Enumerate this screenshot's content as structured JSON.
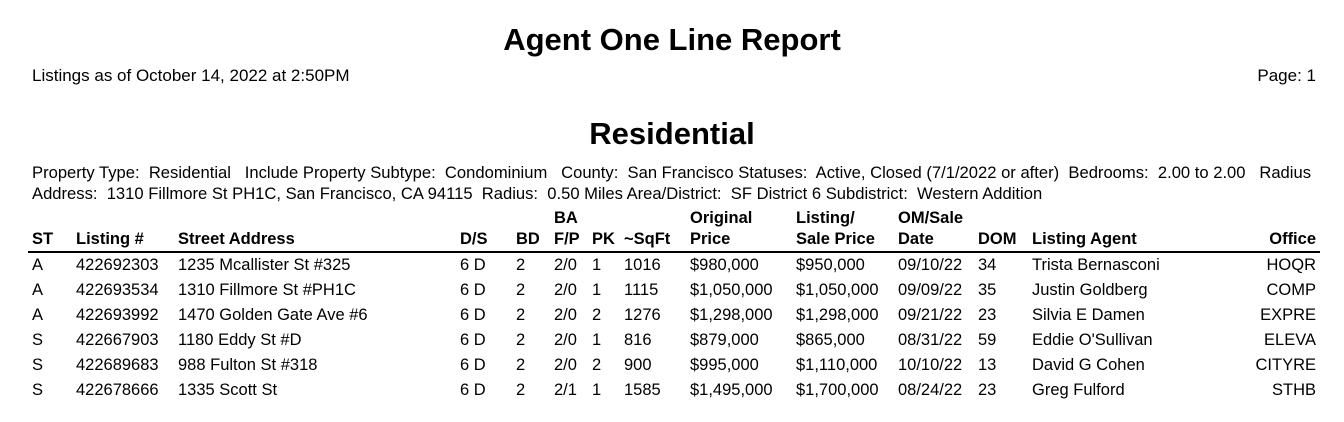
{
  "header": {
    "title": "Agent One Line Report",
    "as_of": "Listings as of October 14, 2022 at 2:50PM",
    "page": "Page: 1"
  },
  "section": {
    "title": "Residential",
    "criteria": "Property Type:  Residential   Include Property Subtype:  Condominium   County:  San Francisco Statuses:  Active, Closed (7/1/2022 or after)  Bedrooms:  2.00 to 2.00   Radius Address:  1310 Fillmore St PH1C, San Francisco, CA 94115  Radius:  0.50 Miles Area/District:  SF District 6 Subdistrict:  Western Addition"
  },
  "table": {
    "columns": {
      "st": "ST",
      "listing": "Listing #",
      "address": "Street Address",
      "ds": "D/S",
      "bd": "BD",
      "ba": "BA\nF/P",
      "pk": "PK",
      "sqft": "~SqFt",
      "orig": "Original\nPrice",
      "sale": "Listing/\nSale Price",
      "date": "OM/Sale\nDate",
      "dom": "DOM",
      "agent": "Listing Agent",
      "office": "Office"
    },
    "rows": [
      {
        "st": "A",
        "listing": "422692303",
        "address": "1235 Mcallister St #325",
        "ds": "6  D",
        "bd": "2",
        "ba": "2/0",
        "pk": "1",
        "sqft": "1016",
        "orig": "$980,000",
        "sale": "$950,000",
        "date": "09/10/22",
        "dom": "34",
        "agent": "Trista Bernasconi",
        "office": "HOQR"
      },
      {
        "st": "A",
        "listing": "422693534",
        "address": "1310 Fillmore St #PH1C",
        "ds": "6  D",
        "bd": "2",
        "ba": "2/0",
        "pk": "1",
        "sqft": "1115",
        "orig": "$1,050,000",
        "sale": "$1,050,000",
        "date": "09/09/22",
        "dom": "35",
        "agent": "Justin Goldberg",
        "office": "COMP"
      },
      {
        "st": "A",
        "listing": "422693992",
        "address": "1470 Golden Gate Ave #6",
        "ds": "6  D",
        "bd": "2",
        "ba": "2/0",
        "pk": "2",
        "sqft": "1276",
        "orig": "$1,298,000",
        "sale": "$1,298,000",
        "date": "09/21/22",
        "dom": "23",
        "agent": "Silvia E Damen",
        "office": "EXPRE"
      },
      {
        "st": "S",
        "listing": "422667903",
        "address": "1180 Eddy St #D",
        "ds": "6  D",
        "bd": "2",
        "ba": "2/0",
        "pk": "1",
        "sqft": "816",
        "orig": "$879,000",
        "sale": "$865,000",
        "date": "08/31/22",
        "dom": "59",
        "agent": "Eddie O'Sullivan",
        "office": "ELEVA"
      },
      {
        "st": "S",
        "listing": "422689683",
        "address": "988 Fulton St #318",
        "ds": "6  D",
        "bd": "2",
        "ba": "2/0",
        "pk": "2",
        "sqft": "900",
        "orig": "$995,000",
        "sale": "$1,110,000",
        "date": "10/10/22",
        "dom": "13",
        "agent": "David G Cohen",
        "office": "CITYRE"
      },
      {
        "st": "S",
        "listing": "422678666",
        "address": "1335 Scott St",
        "ds": "6  D",
        "bd": "2",
        "ba": "2/1",
        "pk": "1",
        "sqft": "1585",
        "orig": "$1,495,000",
        "sale": "$1,700,000",
        "date": "08/24/22",
        "dom": "23",
        "agent": "Greg Fulford",
        "office": "STHB"
      }
    ]
  }
}
